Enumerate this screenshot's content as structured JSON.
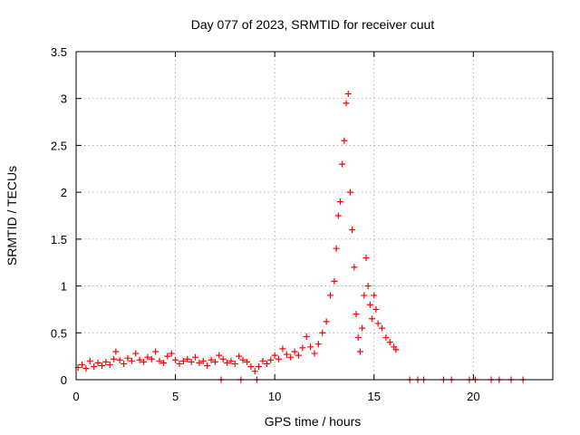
{
  "chart_data": {
    "type": "scatter",
    "title": "Day 077 of 2023, SRMTID for receiver cuut",
    "xlabel": "GPS time / hours",
    "ylabel": "SRMTID / TECUs",
    "xlim": [
      0,
      24
    ],
    "ylim": [
      0,
      3.5
    ],
    "xticks": [
      0,
      5,
      10,
      15,
      20
    ],
    "xtick_labels": [
      "0",
      "5",
      "10",
      "15",
      "20"
    ],
    "yticks": [
      0,
      0.5,
      1,
      1.5,
      2,
      2.5,
      3,
      3.5
    ],
    "ytick_labels": [
      "0",
      "0.5",
      "1",
      "1.5",
      "2",
      "2.5",
      "3",
      "3.5"
    ],
    "grid": true,
    "marker": "+",
    "color": "#ff0000",
    "series": [
      {
        "name": "SRMTID",
        "points": [
          [
            0.1,
            0.13
          ],
          [
            0.3,
            0.16
          ],
          [
            0.5,
            0.12
          ],
          [
            0.7,
            0.2
          ],
          [
            0.9,
            0.14
          ],
          [
            1.1,
            0.18
          ],
          [
            1.3,
            0.15
          ],
          [
            1.5,
            0.19
          ],
          [
            1.7,
            0.16
          ],
          [
            1.9,
            0.22
          ],
          [
            2.0,
            0.3
          ],
          [
            2.2,
            0.21
          ],
          [
            2.4,
            0.17
          ],
          [
            2.6,
            0.23
          ],
          [
            2.8,
            0.2
          ],
          [
            3.0,
            0.28
          ],
          [
            3.2,
            0.21
          ],
          [
            3.4,
            0.19
          ],
          [
            3.6,
            0.24
          ],
          [
            3.8,
            0.22
          ],
          [
            4.0,
            0.3
          ],
          [
            4.2,
            0.2
          ],
          [
            4.4,
            0.18
          ],
          [
            4.6,
            0.25
          ],
          [
            4.8,
            0.28
          ],
          [
            5.0,
            0.21
          ],
          [
            5.2,
            0.17
          ],
          [
            5.4,
            0.2
          ],
          [
            5.6,
            0.22
          ],
          [
            5.8,
            0.19
          ],
          [
            6.0,
            0.24
          ],
          [
            6.2,
            0.18
          ],
          [
            6.4,
            0.2
          ],
          [
            6.6,
            0.15
          ],
          [
            6.8,
            0.21
          ],
          [
            7.0,
            0.19
          ],
          [
            7.2,
            0.26
          ],
          [
            7.4,
            0.22
          ],
          [
            7.6,
            0.18
          ],
          [
            7.8,
            0.2
          ],
          [
            8.0,
            0.17
          ],
          [
            8.2,
            0.25
          ],
          [
            8.4,
            0.21
          ],
          [
            8.6,
            0.19
          ],
          [
            8.8,
            0.14
          ],
          [
            9.0,
            0.09
          ],
          [
            9.2,
            0.14
          ],
          [
            9.4,
            0.2
          ],
          [
            9.6,
            0.17
          ],
          [
            9.8,
            0.21
          ],
          [
            10.0,
            0.26
          ],
          [
            10.2,
            0.22
          ],
          [
            10.4,
            0.33
          ],
          [
            10.6,
            0.27
          ],
          [
            10.8,
            0.24
          ],
          [
            11.0,
            0.3
          ],
          [
            11.2,
            0.26
          ],
          [
            11.4,
            0.34
          ],
          [
            11.6,
            0.46
          ],
          [
            11.8,
            0.35
          ],
          [
            12.0,
            0.28
          ],
          [
            12.2,
            0.38
          ],
          [
            12.4,
            0.5
          ],
          [
            12.6,
            0.62
          ],
          [
            12.8,
            0.9
          ],
          [
            13.0,
            1.05
          ],
          [
            13.1,
            1.4
          ],
          [
            13.2,
            1.75
          ],
          [
            13.3,
            1.9
          ],
          [
            13.4,
            2.3
          ],
          [
            13.5,
            2.55
          ],
          [
            13.6,
            2.95
          ],
          [
            13.7,
            3.05
          ],
          [
            13.8,
            2.0
          ],
          [
            13.9,
            1.6
          ],
          [
            14.0,
            1.2
          ],
          [
            14.1,
            0.7
          ],
          [
            14.2,
            0.45
          ],
          [
            14.3,
            0.3
          ],
          [
            14.4,
            0.55
          ],
          [
            14.5,
            0.9
          ],
          [
            14.6,
            1.3
          ],
          [
            14.7,
            1.0
          ],
          [
            14.8,
            0.8
          ],
          [
            14.9,
            0.65
          ],
          [
            15.0,
            0.9
          ],
          [
            15.1,
            0.75
          ],
          [
            15.2,
            0.6
          ],
          [
            15.4,
            0.55
          ],
          [
            15.6,
            0.45
          ],
          [
            15.8,
            0.4
          ],
          [
            16.0,
            0.35
          ],
          [
            16.1,
            0.32
          ]
        ],
        "baseline_points": [
          [
            7.3,
            0.0
          ],
          [
            8.3,
            0.0
          ],
          [
            9.1,
            0.0
          ],
          [
            16.8,
            0.0
          ],
          [
            17.2,
            0.0
          ],
          [
            17.5,
            0.0
          ],
          [
            18.5,
            0.0
          ],
          [
            18.9,
            0.0
          ],
          [
            19.8,
            0.0
          ],
          [
            20.1,
            0.0
          ],
          [
            20.9,
            0.0
          ],
          [
            21.3,
            0.0
          ],
          [
            21.9,
            0.0
          ],
          [
            22.5,
            0.0
          ]
        ]
      }
    ]
  }
}
